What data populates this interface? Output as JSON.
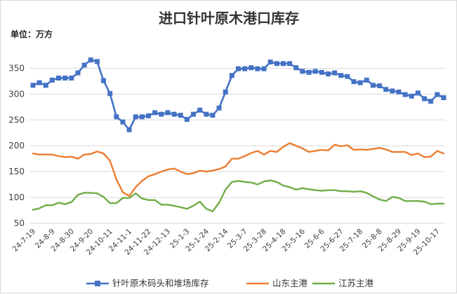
{
  "chart_data": {
    "type": "line",
    "title": "进口针叶原木港口库存",
    "unit_label": "单位：万方",
    "ylim": [
      50,
      375
    ],
    "yticks": [
      50,
      100,
      150,
      200,
      250,
      300,
      350
    ],
    "grid": "horizontal",
    "legend_position": "bottom",
    "x_tick_labels": [
      "24-7-19",
      "24-8-9",
      "24-8-30",
      "24-9-20",
      "24-10-11",
      "24-11-1",
      "24-11-22",
      "24-12-13",
      "25-1-3",
      "25-1-24",
      "25-2-14",
      "25-3-7",
      "25-3-28",
      "25-4-18",
      "25-5-16",
      "25-6-6",
      "25-6-27",
      "25-7-18",
      "25-8-8",
      "25-8-29",
      "25-9-19",
      "25-10-17"
    ],
    "x_tick_positions": [
      0,
      3,
      6,
      9,
      12,
      15,
      18,
      21,
      24,
      27,
      30,
      33,
      36,
      39,
      42,
      45,
      48,
      51,
      54,
      57,
      60,
      63
    ],
    "series": [
      {
        "name": "针叶原木码头和堆场库存",
        "color": "#4472c4",
        "marker": "square",
        "values": [
          317,
          322,
          317,
          327,
          331,
          331,
          331,
          341,
          356,
          366,
          363,
          326,
          301,
          256,
          246,
          231,
          256,
          256,
          258,
          264,
          261,
          264,
          261,
          259,
          251,
          261,
          269,
          261,
          259,
          273,
          304,
          336,
          349,
          349,
          351,
          349,
          349,
          362,
          359,
          359,
          359,
          351,
          344,
          342,
          344,
          342,
          339,
          341,
          336,
          334,
          324,
          322,
          327,
          317,
          316,
          309,
          306,
          304,
          299,
          296,
          302,
          291,
          286,
          299,
          293
        ]
      },
      {
        "name": "山东主港",
        "color": "#ed7d31",
        "values": [
          185,
          183,
          183,
          183,
          180,
          178,
          179,
          175,
          183,
          184,
          189,
          185,
          171,
          135,
          110,
          103,
          120,
          132,
          141,
          145,
          150,
          154,
          156,
          150,
          145,
          147,
          152,
          150,
          152,
          155,
          160,
          175,
          175,
          180,
          186,
          190,
          183,
          190,
          188,
          198,
          205,
          200,
          195,
          188,
          190,
          192,
          191,
          202,
          199,
          201,
          192,
          193,
          192,
          194,
          196,
          193,
          188,
          188,
          188,
          182,
          185,
          178,
          179,
          190,
          185
        ]
      },
      {
        "name": "江苏主港",
        "color": "#70ad47",
        "values": [
          76,
          79,
          85,
          85,
          90,
          87,
          91,
          105,
          109,
          109,
          108,
          101,
          89,
          89,
          99,
          99,
          108,
          98,
          95,
          95,
          86,
          86,
          84,
          81,
          78,
          84,
          92,
          78,
          73,
          90,
          115,
          130,
          132,
          130,
          129,
          125,
          131,
          133,
          130,
          123,
          120,
          115,
          118,
          116,
          114,
          113,
          114,
          114,
          112,
          112,
          111,
          112,
          109,
          102,
          96,
          93,
          101,
          99,
          93,
          93,
          93,
          92,
          87,
          88,
          88
        ]
      }
    ]
  }
}
